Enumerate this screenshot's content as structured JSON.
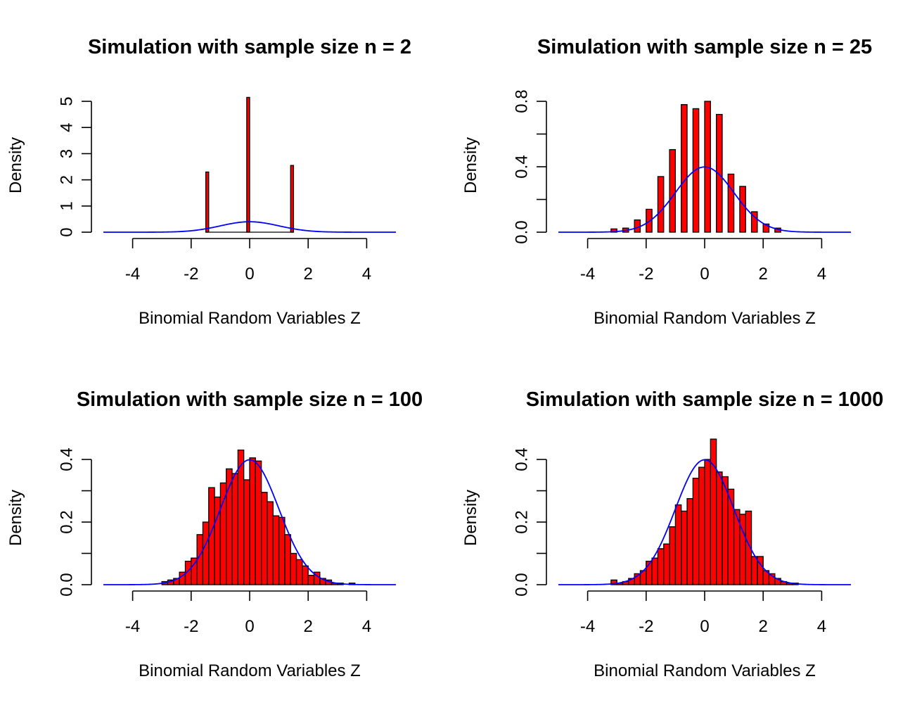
{
  "colors": {
    "bar_fill": "#ff0000",
    "bar_stroke": "#000000",
    "curve": "#0000ff",
    "background": "#ffffff"
  },
  "chart_data": [
    {
      "type": "bar",
      "title": "Simulation with sample size n = 2",
      "xlabel": "Binomial Random Variables Z",
      "ylabel": "Density",
      "xlim": [
        -5,
        5
      ],
      "ylim": [
        0,
        5.2
      ],
      "xticks": [
        -4,
        -2,
        0,
        2,
        4
      ],
      "xtick_labels": [
        "-4",
        "-2",
        "0",
        "2",
        "4"
      ],
      "yticks": [
        0,
        1,
        2,
        3,
        4,
        5
      ],
      "ytick_labels": [
        "0",
        "1",
        "2",
        "3",
        "4",
        "5"
      ],
      "bin_width": 0.1,
      "bins_from": -1.5,
      "bins_to": 1.5,
      "bars": [
        {
          "x": -1.45,
          "density": 2.3
        },
        {
          "x": -0.05,
          "density": 5.15
        },
        {
          "x": 1.45,
          "density": 2.55
        }
      ],
      "curve": {
        "name": "normal density",
        "mean": 0,
        "sd": 1
      }
    },
    {
      "type": "bar",
      "title": "Simulation with sample size n = 25",
      "xlabel": "Binomial Random Variables Z",
      "ylabel": "Density",
      "xlim": [
        -5,
        5
      ],
      "ylim": [
        0,
        0.8
      ],
      "xticks": [
        -4,
        -2,
        0,
        2,
        4
      ],
      "xtick_labels": [
        "-4",
        "-2",
        "0",
        "2",
        "4"
      ],
      "yticks": [
        0,
        0.4,
        0.8
      ],
      "ytick_labels": [
        "0.0",
        "0.4",
        "0.8"
      ],
      "minor_yticks": [
        0.2,
        0.6
      ],
      "bin_width": 0.2,
      "bars": [
        {
          "x": -3.1,
          "density": 0.02
        },
        {
          "x": -2.7,
          "density": 0.025
        },
        {
          "x": -2.3,
          "density": 0.075
        },
        {
          "x": -1.9,
          "density": 0.14
        },
        {
          "x": -1.5,
          "density": 0.34
        },
        {
          "x": -1.1,
          "density": 0.505
        },
        {
          "x": -0.7,
          "density": 0.78
        },
        {
          "x": -0.3,
          "density": 0.755
        },
        {
          "x": 0.1,
          "density": 0.8
        },
        {
          "x": 0.5,
          "density": 0.72
        },
        {
          "x": 0.9,
          "density": 0.355
        },
        {
          "x": 1.3,
          "density": 0.28
        },
        {
          "x": 1.7,
          "density": 0.125
        },
        {
          "x": 2.1,
          "density": 0.05
        },
        {
          "x": 2.5,
          "density": 0.025
        }
      ],
      "curve": {
        "name": "normal density",
        "mean": 0,
        "sd": 1
      }
    },
    {
      "type": "bar",
      "title": "Simulation with sample size n = 100",
      "xlabel": "Binomial Random Variables Z",
      "ylabel": "Density",
      "xlim": [
        -5,
        5
      ],
      "ylim": [
        0,
        0.4
      ],
      "xticks": [
        -4,
        -2,
        0,
        2,
        4
      ],
      "xtick_labels": [
        "-4",
        "-2",
        "0",
        "2",
        "4"
      ],
      "yticks": [
        0,
        0.2,
        0.4
      ],
      "ytick_labels": [
        "0.0",
        "0.2",
        "0.4"
      ],
      "minor_yticks": [
        0.1,
        0.3
      ],
      "bin_width": 0.2,
      "bars": [
        {
          "x": -2.9,
          "density": 0.01
        },
        {
          "x": -2.7,
          "density": 0.015
        },
        {
          "x": -2.5,
          "density": 0.02
        },
        {
          "x": -2.3,
          "density": 0.04
        },
        {
          "x": -2.1,
          "density": 0.075
        },
        {
          "x": -1.9,
          "density": 0.085
        },
        {
          "x": -1.7,
          "density": 0.16
        },
        {
          "x": -1.5,
          "density": 0.2
        },
        {
          "x": -1.3,
          "density": 0.31
        },
        {
          "x": -1.1,
          "density": 0.28
        },
        {
          "x": -0.9,
          "density": 0.325
        },
        {
          "x": -0.7,
          "density": 0.37
        },
        {
          "x": -0.5,
          "density": 0.355
        },
        {
          "x": -0.3,
          "density": 0.43
        },
        {
          "x": -0.1,
          "density": 0.335
        },
        {
          "x": 0.1,
          "density": 0.405
        },
        {
          "x": 0.3,
          "density": 0.395
        },
        {
          "x": 0.5,
          "density": 0.295
        },
        {
          "x": 0.7,
          "density": 0.265
        },
        {
          "x": 0.9,
          "density": 0.22
        },
        {
          "x": 1.1,
          "density": 0.215
        },
        {
          "x": 1.3,
          "density": 0.16
        },
        {
          "x": 1.5,
          "density": 0.1
        },
        {
          "x": 1.7,
          "density": 0.08
        },
        {
          "x": 1.9,
          "density": 0.06
        },
        {
          "x": 2.1,
          "density": 0.03
        },
        {
          "x": 2.3,
          "density": 0.04
        },
        {
          "x": 2.5,
          "density": 0.02
        },
        {
          "x": 2.7,
          "density": 0.015
        },
        {
          "x": 2.9,
          "density": 0.005
        },
        {
          "x": 3.1,
          "density": 0.005
        },
        {
          "x": 3.5,
          "density": 0.005
        }
      ],
      "curve": {
        "name": "normal density",
        "mean": 0,
        "sd": 1
      }
    },
    {
      "type": "bar",
      "title": "Simulation with sample size n = 1000",
      "xlabel": "Binomial Random Variables Z",
      "ylabel": "Density",
      "xlim": [
        -5,
        5
      ],
      "ylim": [
        0,
        0.4
      ],
      "xticks": [
        -4,
        -2,
        0,
        2,
        4
      ],
      "xtick_labels": [
        "-4",
        "-2",
        "0",
        "2",
        "4"
      ],
      "yticks": [
        0,
        0.2,
        0.4
      ],
      "ytick_labels": [
        "0.0",
        "0.2",
        "0.4"
      ],
      "minor_yticks": [
        0.1,
        0.3
      ],
      "bin_width": 0.2,
      "bars": [
        {
          "x": -3.1,
          "density": 0.015
        },
        {
          "x": -2.9,
          "density": 0.005
        },
        {
          "x": -2.7,
          "density": 0.01
        },
        {
          "x": -2.5,
          "density": 0.02
        },
        {
          "x": -2.3,
          "density": 0.035
        },
        {
          "x": -2.1,
          "density": 0.045
        },
        {
          "x": -1.9,
          "density": 0.075
        },
        {
          "x": -1.7,
          "density": 0.085
        },
        {
          "x": -1.5,
          "density": 0.115
        },
        {
          "x": -1.3,
          "density": 0.13
        },
        {
          "x": -1.1,
          "density": 0.185
        },
        {
          "x": -0.9,
          "density": 0.255
        },
        {
          "x": -0.7,
          "density": 0.235
        },
        {
          "x": -0.5,
          "density": 0.275
        },
        {
          "x": -0.3,
          "density": 0.34
        },
        {
          "x": -0.1,
          "density": 0.375
        },
        {
          "x": 0.1,
          "density": 0.4
        },
        {
          "x": 0.3,
          "density": 0.465
        },
        {
          "x": 0.5,
          "density": 0.36
        },
        {
          "x": 0.7,
          "density": 0.345
        },
        {
          "x": 0.9,
          "density": 0.305
        },
        {
          "x": 1.1,
          "density": 0.24
        },
        {
          "x": 1.3,
          "density": 0.225
        },
        {
          "x": 1.5,
          "density": 0.235
        },
        {
          "x": 1.7,
          "density": 0.09
        },
        {
          "x": 1.9,
          "density": 0.09
        },
        {
          "x": 2.1,
          "density": 0.045
        },
        {
          "x": 2.3,
          "density": 0.035
        },
        {
          "x": 2.5,
          "density": 0.02
        },
        {
          "x": 2.7,
          "density": 0.01
        },
        {
          "x": 2.9,
          "density": 0.005
        },
        {
          "x": 3.1,
          "density": 0.005
        }
      ],
      "curve": {
        "name": "normal density",
        "mean": 0,
        "sd": 1
      }
    }
  ]
}
